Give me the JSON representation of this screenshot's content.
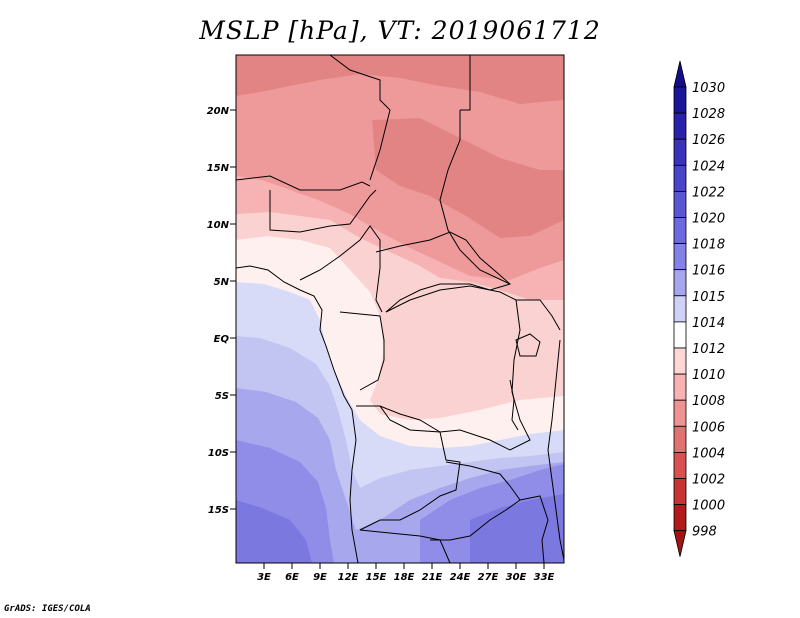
{
  "title": "MSLP [hPa], VT: 2019061712",
  "credit": "GrADS: IGES/COLA",
  "map": {
    "lat_labels": [
      "20N",
      "15N",
      "10N",
      "5N",
      "EQ",
      "5S",
      "10S",
      "15S"
    ],
    "lon_labels": [
      "3E",
      "6E",
      "9E",
      "12E",
      "15E",
      "18E",
      "21E",
      "24E",
      "27E",
      "30E",
      "33E"
    ]
  },
  "colorbar": {
    "levels": [
      "1030",
      "1028",
      "1026",
      "1024",
      "1022",
      "1020",
      "1018",
      "1016",
      "1015",
      "1014",
      "1012",
      "1010",
      "1008",
      "1006",
      "1004",
      "1002",
      "1000",
      "998"
    ],
    "colors": [
      "#1a1496",
      "#2a22aa",
      "#3a32bb",
      "#4a44c8",
      "#5a56d2",
      "#6c6ade",
      "#8482e6",
      "#a6a6ee",
      "#cfd2f6",
      "#ffffff",
      "#ffd6d6",
      "#f7b3b3",
      "#ef9292",
      "#e07272",
      "#d85050",
      "#c83434",
      "#b01a1a"
    ],
    "top_arrow_color": "#140c8a",
    "bottom_arrow_color": "#a01414"
  }
}
